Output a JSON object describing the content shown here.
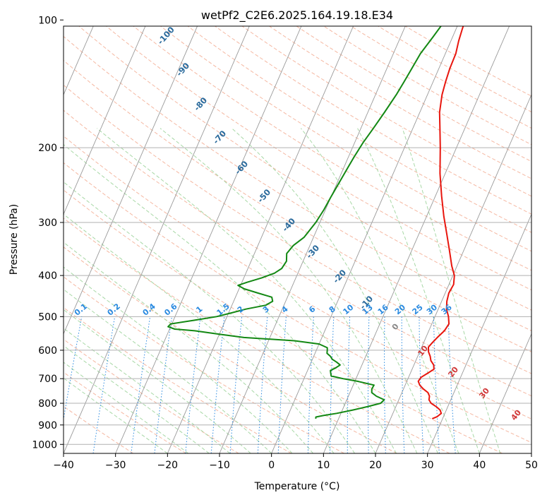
{
  "chart_data": {
    "type": "line",
    "subtype": "skew-T log-P diagram",
    "title": "wetPf2_C2E6.2025.164.19.18.E34",
    "xlabel": "Temperature (°C)",
    "ylabel": "Pressure (hPa)",
    "xlim": [
      -40,
      50
    ],
    "ylim": [
      1050,
      100
    ],
    "y_scale": "log",
    "x_ticks": [
      "−40",
      "−30",
      "−20",
      "−10",
      "0",
      "10",
      "20",
      "30",
      "40",
      "50"
    ],
    "x_tick_values": [
      -40,
      -30,
      -20,
      -10,
      0,
      10,
      20,
      30,
      40,
      50
    ],
    "y_ticks": [
      "100",
      "200",
      "300",
      "400",
      "500",
      "600",
      "700",
      "800",
      "900",
      "1000"
    ],
    "y_tick_values": [
      100,
      200,
      300,
      400,
      500,
      600,
      700,
      800,
      900,
      1000
    ],
    "grid": true,
    "series": [
      {
        "color": "#e8160e",
        "values": [
          [
            870,
            28.0
          ],
          [
            860,
            28.8
          ],
          [
            845,
            29.3
          ],
          [
            830,
            28.8
          ],
          [
            815,
            27.8
          ],
          [
            800,
            26.5
          ],
          [
            785,
            25.8
          ],
          [
            770,
            25.6
          ],
          [
            755,
            25.0
          ],
          [
            740,
            23.8
          ],
          [
            725,
            22.8
          ],
          [
            710,
            22.2
          ],
          [
            695,
            22.4
          ],
          [
            680,
            23.3
          ],
          [
            665,
            24.2
          ],
          [
            650,
            23.8
          ],
          [
            635,
            22.9
          ],
          [
            620,
            22.4
          ],
          [
            605,
            21.7
          ],
          [
            590,
            21.3
          ],
          [
            575,
            21.7
          ],
          [
            560,
            22.2
          ],
          [
            540,
            23.0
          ],
          [
            520,
            23.3
          ],
          [
            500,
            22.6
          ],
          [
            480,
            21.6
          ],
          [
            460,
            21.0
          ],
          [
            440,
            20.7
          ],
          [
            420,
            20.9
          ],
          [
            400,
            20.3
          ],
          [
            380,
            19.0
          ],
          [
            350,
            17.3
          ],
          [
            320,
            15.4
          ],
          [
            290,
            13.3
          ],
          [
            260,
            11.2
          ],
          [
            230,
            9.0
          ],
          [
            200,
            6.9
          ],
          [
            180,
            5.2
          ],
          [
            165,
            3.8
          ],
          [
            150,
            2.8
          ],
          [
            140,
            2.4
          ],
          [
            130,
            2.1
          ],
          [
            120,
            2.0
          ],
          [
            112,
            1.5
          ],
          [
            105,
            1.2
          ],
          [
            100,
            1.0
          ]
        ]
      },
      {
        "color": "#138813",
        "values": [
          [
            870,
            5.6
          ],
          [
            862,
            5.5
          ],
          [
            855,
            6.8
          ],
          [
            845,
            9.2
          ],
          [
            830,
            12.0
          ],
          [
            815,
            14.5
          ],
          [
            800,
            16.8
          ],
          [
            785,
            17.2
          ],
          [
            770,
            15.4
          ],
          [
            755,
            14.2
          ],
          [
            740,
            13.9
          ],
          [
            725,
            14.0
          ],
          [
            710,
            10.5
          ],
          [
            700,
            7.5
          ],
          [
            690,
            5.0
          ],
          [
            680,
            4.7
          ],
          [
            670,
            4.4
          ],
          [
            660,
            5.2
          ],
          [
            650,
            5.8
          ],
          [
            640,
            4.9
          ],
          [
            630,
            3.8
          ],
          [
            620,
            3.2
          ],
          [
            610,
            2.3
          ],
          [
            600,
            2.1
          ],
          [
            592,
            1.9
          ],
          [
            580,
            0.0
          ],
          [
            570,
            -5.0
          ],
          [
            560,
            -15.0
          ],
          [
            550,
            -20.0
          ],
          [
            540,
            -25.0
          ],
          [
            535,
            -29.0
          ],
          [
            528,
            -30.5
          ],
          [
            520,
            -30.2
          ],
          [
            510,
            -26.0
          ],
          [
            500,
            -22.0
          ],
          [
            490,
            -19.5
          ],
          [
            480,
            -17.0
          ],
          [
            470,
            -13.5
          ],
          [
            460,
            -12.5
          ],
          [
            450,
            -13.0
          ],
          [
            440,
            -16.0
          ],
          [
            430,
            -19.0
          ],
          [
            422,
            -20.5
          ],
          [
            415,
            -19.0
          ],
          [
            405,
            -16.5
          ],
          [
            395,
            -14.5
          ],
          [
            385,
            -13.5
          ],
          [
            370,
            -13.2
          ],
          [
            355,
            -13.8
          ],
          [
            340,
            -13.2
          ],
          [
            325,
            -11.8
          ],
          [
            300,
            -10.8
          ],
          [
            280,
            -10.3
          ],
          [
            260,
            -10.0
          ],
          [
            240,
            -9.6
          ],
          [
            222,
            -9.2
          ],
          [
            210,
            -8.9
          ],
          [
            195,
            -8.4
          ],
          [
            180,
            -7.6
          ],
          [
            165,
            -6.8
          ],
          [
            150,
            -6.0
          ],
          [
            140,
            -5.6
          ],
          [
            130,
            -5.2
          ],
          [
            120,
            -4.8
          ],
          [
            110,
            -3.8
          ],
          [
            100,
            -2.8
          ]
        ]
      }
    ],
    "dry_adiabat_labels": [
      "-100",
      "-90",
      "-80",
      "-70",
      "-60",
      "-50",
      "-40",
      "-30",
      "-20",
      "-10"
    ],
    "mixing_ratio_labels": [
      "0.1",
      "0.2",
      "0.4",
      "0.6",
      "1",
      "1.5",
      "2",
      "3",
      "4",
      "6",
      "8",
      "10",
      "13",
      "16",
      "20",
      "25",
      "30",
      "36"
    ],
    "moist_adiabat_labels": [
      "0",
      "10",
      "20",
      "30",
      "40"
    ],
    "colors": {
      "temperature": "#e8160e",
      "dewpoint": "#138813",
      "dry_adiabat": "#f5b8a2",
      "moist_adiabat": "#a8d8a6",
      "mixing_ratio": "#2a8ae0",
      "isotherm": "#9a9a9a"
    }
  }
}
